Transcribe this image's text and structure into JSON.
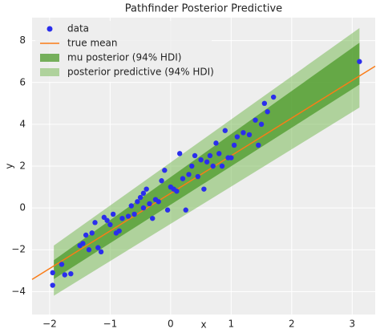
{
  "chart_data": {
    "type": "scatter",
    "title": "Pathfinder Posterior Predictive",
    "xlabel": "x",
    "ylabel": "y",
    "xlim": [
      -2.29,
      3.38
    ],
    "ylim": [
      -5.1,
      9.1
    ],
    "xticks": [
      {
        "value": -2,
        "label": "−2"
      },
      {
        "value": -1,
        "label": "−1"
      },
      0,
      1,
      2,
      3
    ],
    "yticks": [
      {
        "value": -4,
        "label": "−4"
      },
      {
        "value": -2,
        "label": "−2"
      },
      0,
      2,
      4,
      6,
      8
    ],
    "grid": true,
    "legend": "upper left",
    "series": [
      {
        "name": "data",
        "type": "scatter",
        "color": "#2a2eec",
        "x": [
          -1.95,
          -1.95,
          -1.8,
          -1.75,
          -1.65,
          -1.5,
          -1.45,
          -1.4,
          -1.35,
          -1.3,
          -1.25,
          -1.2,
          -1.15,
          -1.1,
          -1.05,
          -1.0,
          -0.95,
          -0.9,
          -0.85,
          -0.8,
          -0.7,
          -0.65,
          -0.6,
          -0.55,
          -0.5,
          -0.45,
          -0.45,
          -0.4,
          -0.35,
          -0.3,
          -0.25,
          -0.2,
          -0.15,
          -0.1,
          -0.05,
          0.0,
          0.05,
          0.1,
          0.15,
          0.2,
          0.25,
          0.3,
          0.35,
          0.4,
          0.45,
          0.5,
          0.55,
          0.6,
          0.65,
          0.7,
          0.75,
          0.8,
          0.85,
          0.9,
          0.95,
          1.0,
          1.05,
          1.1,
          1.2,
          1.3,
          1.4,
          1.45,
          1.5,
          1.55,
          1.6,
          1.7,
          3.12
        ],
        "values": [
          -3.7,
          -3.1,
          -2.7,
          -3.2,
          -3.15,
          -1.8,
          -1.7,
          -1.3,
          -2.0,
          -1.2,
          -0.7,
          -1.9,
          -2.1,
          -0.45,
          -0.6,
          -0.8,
          -0.3,
          -1.2,
          -1.1,
          -0.5,
          -0.4,
          0.1,
          -0.3,
          0.3,
          0.5,
          0.7,
          0.0,
          0.9,
          0.2,
          -0.5,
          0.4,
          0.3,
          1.3,
          1.8,
          -0.1,
          1.0,
          0.9,
          0.8,
          2.6,
          1.4,
          -0.1,
          1.6,
          2.0,
          2.5,
          1.5,
          2.3,
          0.9,
          2.2,
          2.5,
          2.0,
          3.1,
          2.6,
          2.0,
          3.7,
          2.4,
          2.4,
          3.0,
          3.4,
          3.6,
          3.5,
          4.2,
          3.0,
          4.0,
          5.0,
          4.6,
          5.3,
          7.0
        ]
      },
      {
        "name": "true mean",
        "type": "line",
        "color": "#fa7c17",
        "x": [
          -2.29,
          3.38
        ],
        "values": [
          -3.42,
          6.78
        ]
      },
      {
        "name": "mu posterior (94% HDI)",
        "type": "band",
        "color": "#4c9a2a",
        "x": [
          -1.93,
          3.12
        ],
        "lower": [
          -3.4,
          5.9
        ],
        "upper": [
          -2.5,
          7.9
        ]
      },
      {
        "name": "posterior predictive (94% HDI)",
        "type": "band",
        "color": "#6fb54a",
        "x": [
          -1.93,
          3.12
        ],
        "lower": [
          -4.2,
          4.8
        ],
        "upper": [
          -1.8,
          8.6
        ]
      }
    ]
  }
}
